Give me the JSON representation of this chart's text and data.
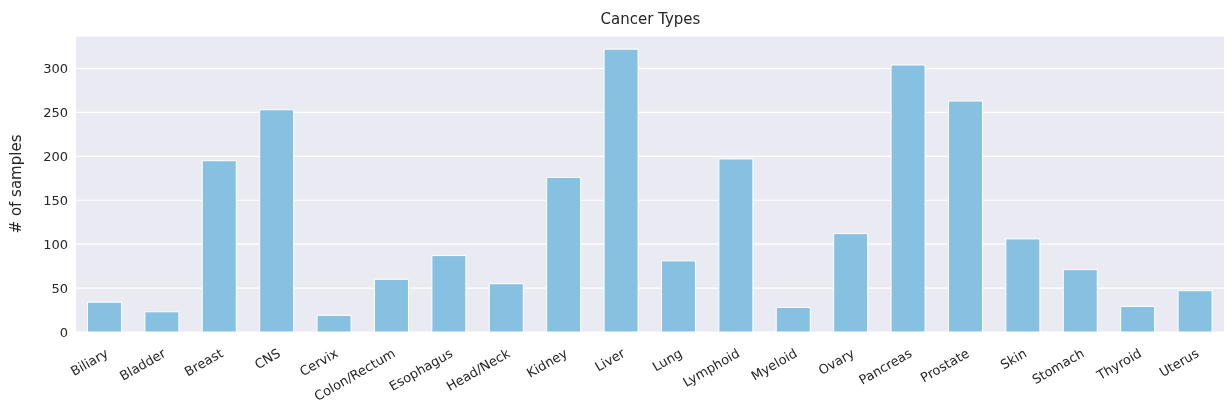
{
  "chart_data": {
    "type": "bar",
    "title": "Cancer Types",
    "ylabel": "# of samples",
    "categories": [
      "Biliary",
      "Bladder",
      "Breast",
      "CNS",
      "Cervix",
      "Colon/Rectum",
      "Esophagus",
      "Head/Neck",
      "Kidney",
      "Liver",
      "Lung",
      "Lymphoid",
      "Myeloid",
      "Ovary",
      "Pancreas",
      "Prostate",
      "Skin",
      "Stomach",
      "Thyroid",
      "Uterus"
    ],
    "values": [
      34,
      23,
      195,
      253,
      19,
      60,
      87,
      55,
      176,
      322,
      81,
      197,
      28,
      112,
      304,
      263,
      106,
      71,
      29,
      47
    ],
    "color": "#87c1e2",
    "ylim": [
      0,
      337
    ],
    "yticks": [
      0,
      50,
      100,
      150,
      200,
      250,
      300
    ],
    "grid": "y"
  }
}
